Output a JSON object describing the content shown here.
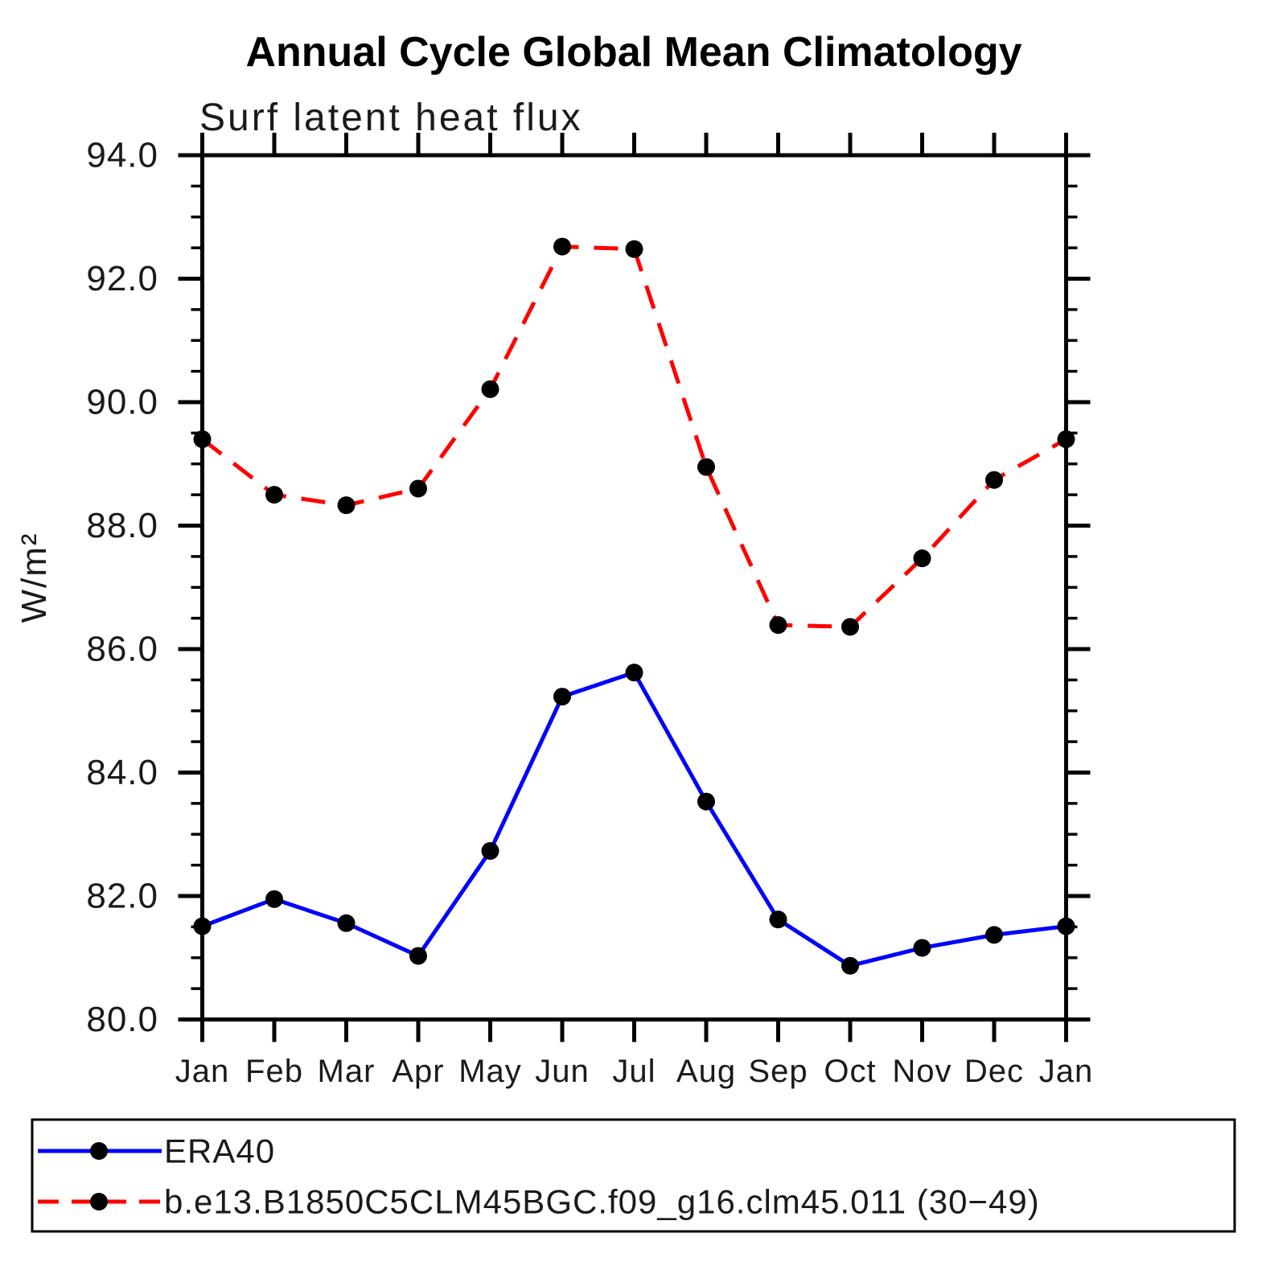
{
  "title": "Annual Cycle Global Mean Climatology",
  "subtitle": "Surf latent heat flux",
  "chart_data": {
    "type": "line",
    "x_categories": [
      "Jan",
      "Feb",
      "Mar",
      "Apr",
      "May",
      "Jun",
      "Jul",
      "Aug",
      "Sep",
      "Oct",
      "Nov",
      "Dec",
      "Jan"
    ],
    "xlabel": "",
    "ylabel": "W/m²",
    "ylim": [
      80.0,
      94.0
    ],
    "y_major_step": 2.0,
    "y_minor_step": 0.5,
    "y_tick_labels": [
      "80.0",
      "82.0",
      "84.0",
      "86.0",
      "88.0",
      "90.0",
      "92.0",
      "94.0"
    ],
    "grid": false,
    "legend_position": "bottom",
    "series": [
      {
        "name": "ERA40",
        "color": "#0000ff",
        "style": "solid",
        "marker": "circle",
        "marker_color": "#000000",
        "values": [
          81.51,
          81.95,
          81.56,
          81.03,
          82.73,
          85.23,
          85.62,
          83.53,
          81.62,
          80.87,
          81.16,
          81.37,
          81.51
        ]
      },
      {
        "name": "b.e13.B1850C5CLM45BGC.f09_g16.clm45.011 (30−49)",
        "color": "#ff0000",
        "style": "dashed",
        "marker": "circle",
        "marker_color": "#000000",
        "values": [
          89.4,
          88.5,
          88.33,
          88.6,
          90.21,
          92.52,
          92.48,
          88.95,
          86.39,
          86.36,
          87.47,
          88.74,
          89.4
        ]
      }
    ]
  }
}
